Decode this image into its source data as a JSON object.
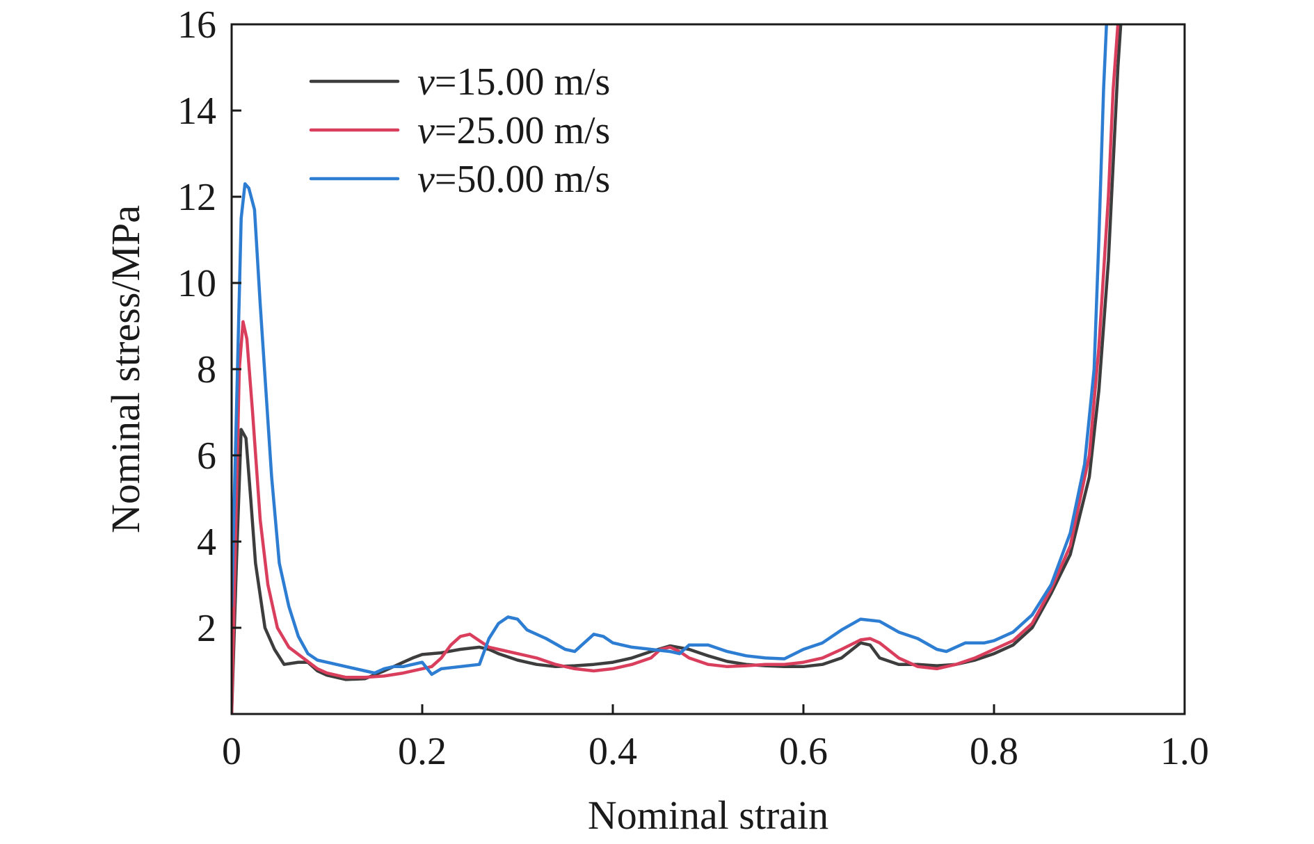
{
  "chart_data": {
    "type": "line",
    "xlabel": "Nominal strain",
    "ylabel": "Nominal stress/MPa",
    "xlim": [
      0,
      1.0
    ],
    "ylim": [
      0,
      16
    ],
    "xticks": [
      0,
      0.2,
      0.4,
      0.6,
      0.8,
      1.0
    ],
    "xtick_labels": [
      "0",
      "0.2",
      "0.4",
      "0.6",
      "0.8",
      "1.0"
    ],
    "yticks": [
      2,
      4,
      6,
      8,
      10,
      12,
      14,
      16
    ],
    "ytick_labels": [
      "2",
      "4",
      "6",
      "8",
      "10",
      "12",
      "14",
      "16"
    ],
    "grid": false,
    "legend_position": "top-left",
    "legend": [
      {
        "var": "v",
        "rest": "=15.00 m/s"
      },
      {
        "var": "v",
        "rest": "=25.00 m/s"
      },
      {
        "var": "v",
        "rest": "=50.00 m/s"
      }
    ],
    "series": [
      {
        "name": "v=15.00 m/s",
        "color": "#3d3d3d",
        "points": [
          [
            0,
            0
          ],
          [
            0.005,
            3.5
          ],
          [
            0.01,
            6.6
          ],
          [
            0.015,
            6.4
          ],
          [
            0.02,
            5.0
          ],
          [
            0.025,
            3.5
          ],
          [
            0.035,
            2.0
          ],
          [
            0.045,
            1.5
          ],
          [
            0.055,
            1.15
          ],
          [
            0.07,
            1.2
          ],
          [
            0.08,
            1.2
          ],
          [
            0.09,
            1.0
          ],
          [
            0.1,
            0.9
          ],
          [
            0.12,
            0.8
          ],
          [
            0.14,
            0.82
          ],
          [
            0.16,
            1.0
          ],
          [
            0.18,
            1.2
          ],
          [
            0.19,
            1.3
          ],
          [
            0.2,
            1.38
          ],
          [
            0.22,
            1.42
          ],
          [
            0.24,
            1.5
          ],
          [
            0.26,
            1.55
          ],
          [
            0.27,
            1.5
          ],
          [
            0.28,
            1.4
          ],
          [
            0.3,
            1.25
          ],
          [
            0.32,
            1.15
          ],
          [
            0.34,
            1.1
          ],
          [
            0.36,
            1.12
          ],
          [
            0.38,
            1.15
          ],
          [
            0.4,
            1.2
          ],
          [
            0.42,
            1.3
          ],
          [
            0.44,
            1.45
          ],
          [
            0.46,
            1.58
          ],
          [
            0.48,
            1.5
          ],
          [
            0.5,
            1.35
          ],
          [
            0.52,
            1.22
          ],
          [
            0.54,
            1.15
          ],
          [
            0.56,
            1.12
          ],
          [
            0.58,
            1.1
          ],
          [
            0.6,
            1.1
          ],
          [
            0.62,
            1.15
          ],
          [
            0.64,
            1.3
          ],
          [
            0.66,
            1.65
          ],
          [
            0.67,
            1.6
          ],
          [
            0.68,
            1.3
          ],
          [
            0.7,
            1.15
          ],
          [
            0.72,
            1.15
          ],
          [
            0.74,
            1.12
          ],
          [
            0.76,
            1.15
          ],
          [
            0.78,
            1.25
          ],
          [
            0.8,
            1.4
          ],
          [
            0.82,
            1.6
          ],
          [
            0.84,
            2.0
          ],
          [
            0.86,
            2.8
          ],
          [
            0.88,
            3.7
          ],
          [
            0.9,
            5.5
          ],
          [
            0.91,
            7.5
          ],
          [
            0.92,
            10.5
          ],
          [
            0.93,
            15.0
          ],
          [
            0.933,
            16.0
          ]
        ]
      },
      {
        "name": "v=25.00 m/s",
        "color": "#d93f5c",
        "points": [
          [
            0,
            0
          ],
          [
            0.004,
            4.0
          ],
          [
            0.008,
            8.0
          ],
          [
            0.012,
            9.1
          ],
          [
            0.016,
            8.7
          ],
          [
            0.022,
            7.0
          ],
          [
            0.03,
            4.5
          ],
          [
            0.038,
            3.0
          ],
          [
            0.048,
            2.0
          ],
          [
            0.06,
            1.55
          ],
          [
            0.075,
            1.3
          ],
          [
            0.09,
            1.05
          ],
          [
            0.1,
            0.95
          ],
          [
            0.12,
            0.85
          ],
          [
            0.14,
            0.85
          ],
          [
            0.16,
            0.88
          ],
          [
            0.18,
            0.95
          ],
          [
            0.2,
            1.05
          ],
          [
            0.21,
            1.1
          ],
          [
            0.22,
            1.3
          ],
          [
            0.23,
            1.6
          ],
          [
            0.24,
            1.8
          ],
          [
            0.25,
            1.85
          ],
          [
            0.26,
            1.7
          ],
          [
            0.27,
            1.55
          ],
          [
            0.28,
            1.5
          ],
          [
            0.3,
            1.4
          ],
          [
            0.32,
            1.3
          ],
          [
            0.34,
            1.15
          ],
          [
            0.36,
            1.05
          ],
          [
            0.38,
            1.0
          ],
          [
            0.4,
            1.05
          ],
          [
            0.42,
            1.15
          ],
          [
            0.44,
            1.3
          ],
          [
            0.45,
            1.5
          ],
          [
            0.46,
            1.55
          ],
          [
            0.47,
            1.45
          ],
          [
            0.48,
            1.3
          ],
          [
            0.5,
            1.15
          ],
          [
            0.52,
            1.1
          ],
          [
            0.54,
            1.12
          ],
          [
            0.56,
            1.15
          ],
          [
            0.58,
            1.15
          ],
          [
            0.6,
            1.2
          ],
          [
            0.62,
            1.3
          ],
          [
            0.64,
            1.5
          ],
          [
            0.66,
            1.72
          ],
          [
            0.67,
            1.75
          ],
          [
            0.68,
            1.65
          ],
          [
            0.7,
            1.3
          ],
          [
            0.72,
            1.1
          ],
          [
            0.74,
            1.05
          ],
          [
            0.76,
            1.15
          ],
          [
            0.78,
            1.3
          ],
          [
            0.8,
            1.5
          ],
          [
            0.82,
            1.7
          ],
          [
            0.84,
            2.1
          ],
          [
            0.86,
            2.9
          ],
          [
            0.88,
            3.9
          ],
          [
            0.9,
            6.0
          ],
          [
            0.91,
            8.5
          ],
          [
            0.92,
            12.0
          ],
          [
            0.925,
            14.5
          ],
          [
            0.93,
            16.0
          ]
        ]
      },
      {
        "name": "v=50.00 m/s",
        "color": "#2d7dd2",
        "points": [
          [
            0,
            2.5
          ],
          [
            0.005,
            7.0
          ],
          [
            0.01,
            11.5
          ],
          [
            0.014,
            12.3
          ],
          [
            0.018,
            12.2
          ],
          [
            0.024,
            11.7
          ],
          [
            0.03,
            9.5
          ],
          [
            0.036,
            7.5
          ],
          [
            0.042,
            5.5
          ],
          [
            0.05,
            3.5
          ],
          [
            0.06,
            2.5
          ],
          [
            0.07,
            1.8
          ],
          [
            0.08,
            1.4
          ],
          [
            0.09,
            1.25
          ],
          [
            0.1,
            1.2
          ],
          [
            0.12,
            1.1
          ],
          [
            0.14,
            1.0
          ],
          [
            0.15,
            0.95
          ],
          [
            0.16,
            1.05
          ],
          [
            0.17,
            1.1
          ],
          [
            0.18,
            1.1
          ],
          [
            0.19,
            1.15
          ],
          [
            0.2,
            1.2
          ],
          [
            0.21,
            0.92
          ],
          [
            0.22,
            1.05
          ],
          [
            0.24,
            1.1
          ],
          [
            0.26,
            1.15
          ],
          [
            0.27,
            1.75
          ],
          [
            0.28,
            2.1
          ],
          [
            0.29,
            2.25
          ],
          [
            0.3,
            2.2
          ],
          [
            0.31,
            1.95
          ],
          [
            0.33,
            1.75
          ],
          [
            0.35,
            1.5
          ],
          [
            0.36,
            1.45
          ],
          [
            0.38,
            1.85
          ],
          [
            0.39,
            1.8
          ],
          [
            0.4,
            1.65
          ],
          [
            0.42,
            1.55
          ],
          [
            0.44,
            1.5
          ],
          [
            0.46,
            1.45
          ],
          [
            0.47,
            1.4
          ],
          [
            0.48,
            1.6
          ],
          [
            0.5,
            1.6
          ],
          [
            0.52,
            1.45
          ],
          [
            0.54,
            1.35
          ],
          [
            0.56,
            1.3
          ],
          [
            0.58,
            1.28
          ],
          [
            0.6,
            1.5
          ],
          [
            0.62,
            1.65
          ],
          [
            0.64,
            1.95
          ],
          [
            0.66,
            2.2
          ],
          [
            0.68,
            2.15
          ],
          [
            0.7,
            1.9
          ],
          [
            0.72,
            1.75
          ],
          [
            0.74,
            1.5
          ],
          [
            0.75,
            1.45
          ],
          [
            0.77,
            1.65
          ],
          [
            0.79,
            1.65
          ],
          [
            0.8,
            1.7
          ],
          [
            0.82,
            1.9
          ],
          [
            0.84,
            2.3
          ],
          [
            0.86,
            3.0
          ],
          [
            0.88,
            4.2
          ],
          [
            0.895,
            5.8
          ],
          [
            0.905,
            8.0
          ],
          [
            0.91,
            11.0
          ],
          [
            0.915,
            14.5
          ],
          [
            0.918,
            16.0
          ]
        ]
      }
    ]
  }
}
